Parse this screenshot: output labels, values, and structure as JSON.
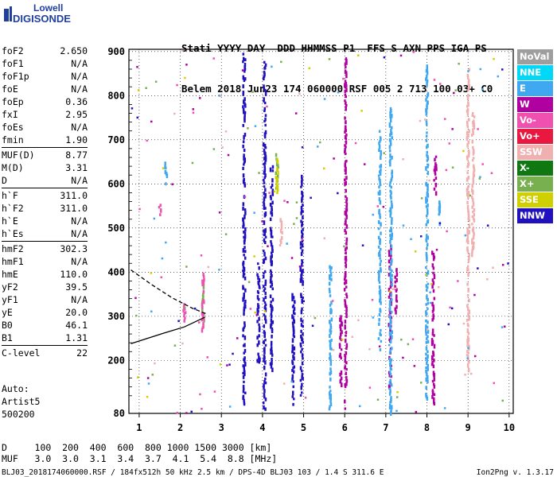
{
  "logo": {
    "line1": "Lowell",
    "line2": "DIGISONDE"
  },
  "header": {
    "line1": "Stati YYYY DAY  DDD HHMMSS P1  FFS S AXN PPS IGA PS",
    "line2": "Belem 2018 Jun23 174 060000 RSF 005 2 713 100 03+ C0"
  },
  "params": [
    {
      "name": "foF2",
      "value": "2.650"
    },
    {
      "name": "foF1",
      "value": "N/A"
    },
    {
      "name": "foF1p",
      "value": "N/A"
    },
    {
      "name": "foE",
      "value": "N/A"
    },
    {
      "name": "foEp",
      "value": "0.36"
    },
    {
      "name": "fxI",
      "value": "2.95"
    },
    {
      "name": "foEs",
      "value": "N/A"
    },
    {
      "name": "fmin",
      "value": "1.90"
    },
    {
      "name": "MUF(D)",
      "value": "8.77"
    },
    {
      "name": "M(D)",
      "value": "3.31"
    },
    {
      "name": "D",
      "value": "N/A"
    },
    {
      "name": "h`F",
      "value": "311.0"
    },
    {
      "name": "h`F2",
      "value": "311.0"
    },
    {
      "name": "h`E",
      "value": "N/A"
    },
    {
      "name": "h`Es",
      "value": "N/A"
    },
    {
      "name": "hmF2",
      "value": "302.3"
    },
    {
      "name": "hmF1",
      "value": "N/A"
    },
    {
      "name": "hmE",
      "value": "110.0"
    },
    {
      "name": "yF2",
      "value": "39.5"
    },
    {
      "name": "yF1",
      "value": "N/A"
    },
    {
      "name": "yE",
      "value": "20.0"
    },
    {
      "name": "B0",
      "value": "46.1"
    },
    {
      "name": "B1",
      "value": "1.31"
    },
    {
      "name": "C-level",
      "value": "22"
    }
  ],
  "auto": {
    "line1": "Auto:",
    "line2": "Artist5",
    "line3": "500200"
  },
  "legend": [
    {
      "label": "NoVal",
      "color": "#9e9e9e"
    },
    {
      "label": "NNE",
      "color": "#00d8f8"
    },
    {
      "label": "E",
      "color": "#40a8f0"
    },
    {
      "label": "W",
      "color": "#b000a0"
    },
    {
      "label": "Vo-",
      "color": "#f050b0"
    },
    {
      "label": "Vo+",
      "color": "#e81840"
    },
    {
      "label": "SSW",
      "color": "#f0b0b0"
    },
    {
      "label": "X-",
      "color": "#107810"
    },
    {
      "label": "X+",
      "color": "#78b050"
    },
    {
      "label": "SSE",
      "color": "#d0d000"
    },
    {
      "label": "NNW",
      "color": "#2010c0"
    }
  ],
  "footer": {
    "d_line": "D     100  200  400  600  800 1000 1500 3000 [km]",
    "muf_line": "MUF   3.0  3.0  3.1  3.4  3.7  4.1  5.4  8.8 [MHz]",
    "file_info": "BLJ03_2018174060000.RSF / 184fx512h 50 kHz 2.5 km / DPS-4D BLJ03 103 / 1.4 S 311.6 E",
    "version": "Ion2Png v. 1.3.17"
  },
  "chart_data": {
    "type": "scatter",
    "xlabel": "",
    "ylabel": "",
    "xlim": [
      0.75,
      10.1
    ],
    "ylim": [
      80,
      905
    ],
    "xticks": [
      "1",
      "2",
      "3",
      "4",
      "5",
      "6",
      "7",
      "8",
      "9",
      "10"
    ],
    "yticks": [
      "80",
      "200",
      "300",
      "400",
      "500",
      "600",
      "700",
      "800",
      "900"
    ],
    "grid": true,
    "legend_position": "right",
    "series": [
      {
        "name": "NNW",
        "color": "#2010c0",
        "bands": [
          [
            3.55,
            100,
            895
          ],
          [
            4.05,
            90,
            880
          ],
          [
            4.22,
            180,
            640
          ],
          [
            3.9,
            190,
            420
          ],
          [
            4.75,
            100,
            350
          ],
          [
            4.95,
            120,
            620
          ]
        ]
      },
      {
        "name": "W",
        "color": "#b000a0",
        "bands": [
          [
            6.02,
            90,
            885
          ],
          [
            5.9,
            140,
            310
          ],
          [
            7.1,
            130,
            460
          ],
          [
            7.25,
            300,
            420
          ],
          [
            8.15,
            100,
            450
          ],
          [
            8.2,
            580,
            670
          ]
        ]
      },
      {
        "name": "E",
        "color": "#40a8f0",
        "bands": [
          [
            6.85,
            200,
            720
          ],
          [
            7.12,
            80,
            780
          ],
          [
            8.0,
            110,
            870
          ],
          [
            8.3,
            500,
            560
          ],
          [
            1.65,
            600,
            660
          ],
          [
            5.65,
            90,
            420
          ]
        ]
      },
      {
        "name": "SSW",
        "color": "#f0b0b0",
        "bands": [
          [
            9.0,
            180,
            860
          ],
          [
            9.12,
            440,
            760
          ],
          [
            4.45,
            450,
            520
          ]
        ]
      },
      {
        "name": "X+",
        "color": "#78b050",
        "bands": [
          [
            4.35,
            590,
            670
          ],
          [
            2.55,
            290,
            370
          ]
        ]
      },
      {
        "name": "SSE",
        "color": "#d0d000",
        "bands": [
          [
            4.35,
            580,
            660
          ]
        ]
      },
      {
        "name": "Vo-",
        "color": "#f050b0",
        "bands": [
          [
            2.55,
            270,
            400
          ],
          [
            2.1,
            290,
            330
          ],
          [
            1.5,
            530,
            560
          ]
        ]
      }
    ],
    "trace_solid": {
      "x": [
        0.8,
        1.6,
        2.1,
        2.6
      ],
      "y": [
        238,
        262,
        276,
        298
      ]
    },
    "trace_dashed": {
      "x": [
        0.8,
        1.3,
        1.8,
        2.3,
        2.65
      ],
      "y": [
        405,
        372,
        342,
        318,
        305
      ]
    }
  }
}
